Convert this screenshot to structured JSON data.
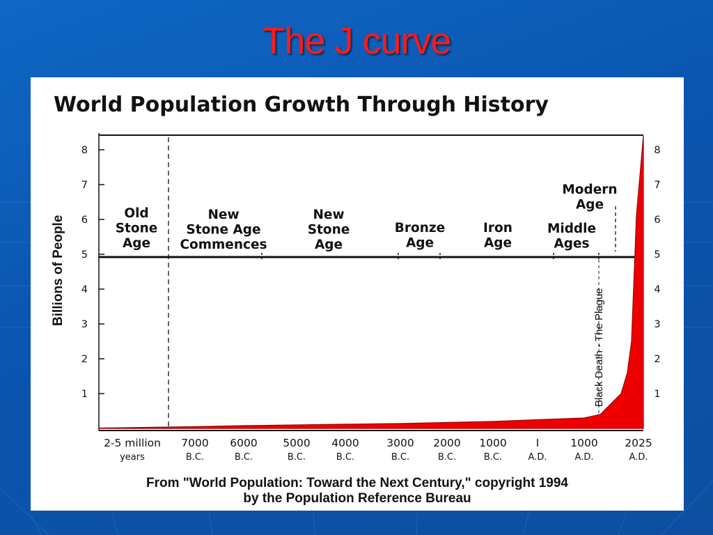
{
  "slide": {
    "title": "The J curve"
  },
  "colors": {
    "background": "#0a55b0",
    "title": "#ff1a1a",
    "curve_fill": "#ee0000",
    "panel": "#ffffff"
  },
  "chart_data": {
    "type": "area",
    "title": "World Population Growth Through History",
    "ylabel": "Billions of People",
    "xlabel": "",
    "ylim": [
      0,
      8.5
    ],
    "y_ticks": [
      "1",
      "2",
      "3",
      "4",
      "5",
      "6",
      "7",
      "8"
    ],
    "y_ticks_right": [
      "1",
      "2",
      "3",
      "4",
      "5",
      "6",
      "7",
      "8"
    ],
    "x_ticks": [
      {
        "label": "2-5 million",
        "sub": "years"
      },
      {
        "label": "7000",
        "sub": "B.C."
      },
      {
        "label": "6000",
        "sub": "B.C."
      },
      {
        "label": "5000",
        "sub": "B.C."
      },
      {
        "label": "4000",
        "sub": "B.C."
      },
      {
        "label": "3000",
        "sub": "B.C."
      },
      {
        "label": "2000",
        "sub": "B.C."
      },
      {
        "label": "1000",
        "sub": "B.C."
      },
      {
        "label": "I",
        "sub": "A.D."
      },
      {
        "label": "1000",
        "sub": "A.D."
      },
      {
        "label": "2025",
        "sub": "A.D."
      }
    ],
    "eras": [
      {
        "lines": [
          "Old",
          "Stone",
          "Age"
        ]
      },
      {
        "lines": [
          "New",
          "Stone Age",
          "Commences"
        ]
      },
      {
        "lines": [
          "New",
          "Stone",
          "Age"
        ]
      },
      {
        "lines": [
          "Bronze",
          "Age"
        ]
      },
      {
        "lines": [
          "Iron",
          "Age"
        ]
      },
      {
        "lines": [
          "Middle",
          "Ages"
        ]
      },
      {
        "lines": [
          "Modern",
          "Age"
        ]
      }
    ],
    "annotations": [
      "Black Death - The Plague"
    ],
    "series": [
      {
        "x": [
          "2-5 million years",
          "7000 B.C.",
          "6000 B.C.",
          "5000 B.C.",
          "4000 B.C.",
          "3000 B.C.",
          "2000 B.C.",
          "1000 B.C.",
          "1 A.D.",
          "1000 A.D.",
          "1350 A.D.",
          "1800 A.D.",
          "1900 A.D.",
          "1950 A.D.",
          "2000 A.D.",
          "2025 A.D."
        ],
        "values": [
          0.01,
          0.05,
          0.08,
          0.1,
          0.12,
          0.14,
          0.17,
          0.2,
          0.25,
          0.3,
          0.4,
          1.0,
          1.6,
          2.5,
          6.1,
          8.4
        ]
      }
    ]
  },
  "source": {
    "line1": "From \"World Population: Toward the Next Century,\" copyright 1994",
    "line2": "by the Population Reference Bureau"
  }
}
